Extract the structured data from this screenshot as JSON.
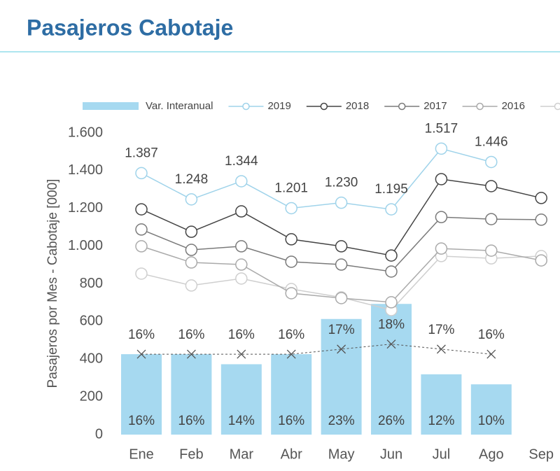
{
  "chart_data": {
    "type": "combo",
    "title": "Pasajeros Cabotaje",
    "y_label": "Pasajeros por Mes - Cabotaje [000]",
    "categories": [
      "Ene",
      "Feb",
      "Mar",
      "Abr",
      "May",
      "Jun",
      "Jul",
      "Ago",
      "Sep"
    ],
    "ylim": [
      0,
      1600
    ],
    "yticks": [
      0,
      200,
      400,
      600,
      800,
      {
        "value": 1000,
        "label": "1.000"
      },
      {
        "value": 1200,
        "label": "1.200"
      },
      {
        "value": 1400,
        "label": "1.400"
      },
      {
        "value": 1600,
        "label": "1.600"
      }
    ],
    "y2lim": [
      0,
      60
    ],
    "series": [
      {
        "name": "Var. Interanual",
        "type": "bar",
        "axis": "y2",
        "color": "#a6d9f0",
        "values": [
          16,
          16,
          14,
          16,
          23,
          26,
          12,
          10,
          null
        ],
        "value_labels": [
          "16%",
          "16%",
          "14%",
          "16%",
          "23%",
          "26%",
          "12%",
          "10%",
          null
        ]
      },
      {
        "name": "2019",
        "type": "line",
        "color": "#9fd3ea",
        "values": [
          1387,
          1248,
          1344,
          1201,
          1230,
          1195,
          1517,
          1446,
          null
        ],
        "value_labels": [
          "1.387",
          "1.248",
          "1.344",
          "1.201",
          "1.230",
          "1.195",
          "1.517",
          "1.446",
          null
        ]
      },
      {
        "name": "2018",
        "type": "line",
        "color": "#444444",
        "values": [
          1195,
          1076,
          1184,
          1036,
          999,
          950,
          1355,
          1318,
          1255
        ]
      },
      {
        "name": "2017",
        "type": "line",
        "color": "#7a7a7a",
        "values": [
          1088,
          980,
          999,
          917,
          902,
          865,
          1154,
          1143,
          1140
        ]
      },
      {
        "name": "2016",
        "type": "line",
        "color": "#aaaaaa",
        "values": [
          999,
          913,
          902,
          750,
          724,
          702,
          987,
          976,
          924
        ]
      },
      {
        "type": "line",
        "color": "#cfcfcf",
        "values": [
          854,
          791,
          828,
          772,
          728,
          661,
          947,
          935,
          947
        ]
      },
      {
        "type": "dashed",
        "axis": "y2",
        "color": "#555555",
        "values": [
          16,
          16,
          16,
          16,
          17,
          18,
          17,
          16,
          null
        ],
        "value_labels": [
          "16%",
          "16%",
          "16%",
          "16%",
          "17%",
          "18%",
          "17%",
          "16%",
          null
        ]
      }
    ]
  }
}
